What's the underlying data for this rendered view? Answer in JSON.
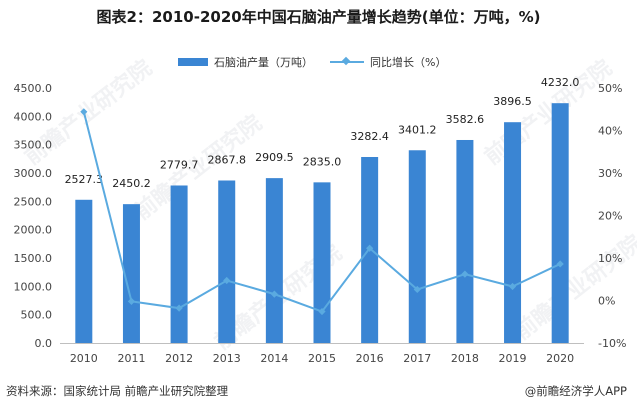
{
  "title": "图表2：2010-2020年中国石脑油产量增长趋势(单位：万吨，%)",
  "footer": {
    "source": "资料来源：国家统计局 前瞻产业研究院整理",
    "brand": "@前瞻经济学人APP"
  },
  "watermark": "前瞻产业研究院",
  "colors": {
    "bar": "#3a85d3",
    "line": "#5aaae0"
  },
  "chart_data": {
    "type": "bar",
    "categories": [
      "2010",
      "2011",
      "2012",
      "2013",
      "2014",
      "2015",
      "2016",
      "2017",
      "2018",
      "2019",
      "2020"
    ],
    "series": [
      {
        "name": "石脑油产量（万吨）",
        "type": "bar",
        "axis": "left",
        "values": [
          2527.3,
          2450.2,
          2779.7,
          2867.8,
          2909.5,
          2835.0,
          3282.4,
          3401.2,
          3582.6,
          3896.5,
          4232.0
        ],
        "labels": [
          "2527.3",
          "2450.2",
          "2779.7",
          "2867.8",
          "2909.5",
          "2835.0",
          "3282.4",
          "3401.2",
          "3582.6",
          "3896.5",
          "4232.0"
        ]
      },
      {
        "name": "同比增长（%）",
        "type": "line",
        "axis": "right",
        "values": [
          44.4,
          -0.2,
          -1.8,
          4.7,
          1.5,
          -2.6,
          12.3,
          2.6,
          6.2,
          3.3,
          8.6
        ]
      }
    ],
    "y_left": {
      "min": 0,
      "max": 4500,
      "step": 500,
      "ticks": [
        "0.0",
        "500.0",
        "1000.0",
        "1500.0",
        "2000.0",
        "2500.0",
        "3000.0",
        "3500.0",
        "4000.0",
        "4500.0"
      ]
    },
    "y_right": {
      "min": -10,
      "max": 50,
      "step": 10,
      "ticks": [
        "-10%",
        "0%",
        "10%",
        "20%",
        "30%",
        "40%",
        "50%"
      ]
    },
    "legend": [
      "石脑油产量（万吨）",
      "同比增长（%）"
    ],
    "legend_position": "top-center"
  }
}
